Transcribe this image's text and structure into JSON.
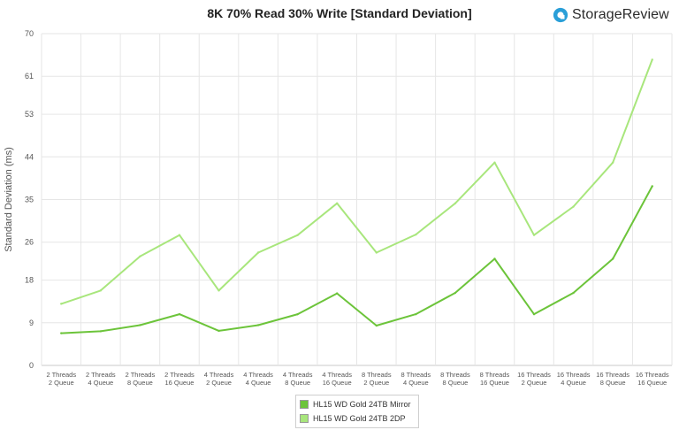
{
  "header": {
    "title": "8K 70% Read 30% Write [Standard Deviation]",
    "brand": "StorageReview",
    "brand_icon": "storagereview-logo-icon"
  },
  "chart_data": {
    "type": "line",
    "title": "8K 70% Read 30% Write [Standard Deviation]",
    "xlabel": "",
    "ylabel": "Standard Deviation (ms)",
    "ylim": [
      0,
      70
    ],
    "yticks": [
      "0",
      "9",
      "18",
      "26",
      "35",
      "44",
      "53",
      "61",
      "70"
    ],
    "grid": true,
    "legend_position": "bottom",
    "categories": [
      [
        "2 Threads",
        "2 Queue"
      ],
      [
        "2 Threads",
        "4 Queue"
      ],
      [
        "2 Threads",
        "8 Queue"
      ],
      [
        "2 Threads",
        "16 Queue"
      ],
      [
        "4 Threads",
        "2 Queue"
      ],
      [
        "4 Threads",
        "4 Queue"
      ],
      [
        "4 Threads",
        "8 Queue"
      ],
      [
        "4 Threads",
        "16 Queue"
      ],
      [
        "8 Threads",
        "2 Queue"
      ],
      [
        "8 Threads",
        "4 Queue"
      ],
      [
        "8 Threads",
        "8 Queue"
      ],
      [
        "8 Threads",
        "16 Queue"
      ],
      [
        "16 Threads",
        "2 Queue"
      ],
      [
        "16 Threads",
        "4 Queue"
      ],
      [
        "16 Threads",
        "8 Queue"
      ],
      [
        "16 Threads",
        "16 Queue"
      ]
    ],
    "series": [
      {
        "name": "HL15 WD Gold 24TB Mirror",
        "color": "#6cc43a",
        "values": [
          6.8,
          7.2,
          8.5,
          10.8,
          7.3,
          8.5,
          10.8,
          15.2,
          8.4,
          10.8,
          15.3,
          22.5,
          10.8,
          15.3,
          22.5,
          37.8
        ]
      },
      {
        "name": "HL15 WD Gold 24TB 2DP",
        "color": "#a8e67c",
        "values": [
          13.0,
          15.8,
          23.0,
          27.5,
          15.8,
          23.8,
          27.5,
          34.2,
          23.8,
          27.6,
          34.2,
          42.8,
          27.5,
          33.5,
          42.8,
          64.5
        ]
      }
    ]
  }
}
